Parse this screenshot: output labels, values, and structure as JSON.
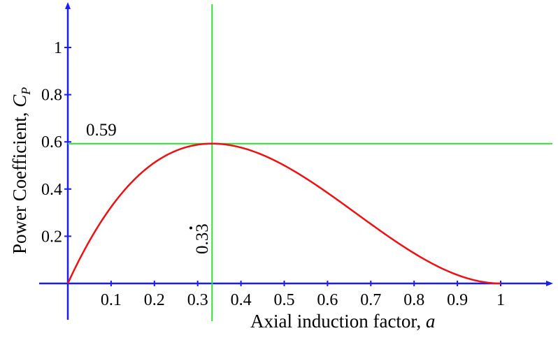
{
  "chart_data": {
    "type": "line",
    "xlabel": "Axial induction factor, ",
    "xlabel_var": "a",
    "ylabel": "Power Coefficient, ",
    "ylabel_var": "C",
    "ylabel_sub": "P",
    "x_ticks": [
      "0.1",
      "0.2",
      "0.3",
      "0.4",
      "0.5",
      "0.6",
      "0.7",
      "0.8",
      "0.9",
      "1"
    ],
    "x_tick_values": [
      0.1,
      0.2,
      0.3,
      0.4,
      0.5,
      0.6,
      0.7,
      0.8,
      0.9,
      1.0
    ],
    "y_ticks": [
      "0.2",
      "0.4",
      "0.6",
      "0.8",
      "1"
    ],
    "y_tick_values": [
      0.2,
      0.4,
      0.6,
      0.8,
      1.0
    ],
    "xlim": [
      0,
      1.1
    ],
    "ylim": [
      0,
      1.16
    ],
    "grid": false,
    "series": [
      {
        "color": "#ee1111",
        "formula": "4a(1-a)^2",
        "x": [
          0,
          0.05,
          0.1,
          0.15,
          0.2,
          0.25,
          0.3,
          0.3333,
          0.35,
          0.4,
          0.45,
          0.5,
          0.55,
          0.6,
          0.65,
          0.7,
          0.75,
          0.8,
          0.85,
          0.9,
          0.95,
          1.0
        ],
        "y": [
          0,
          0.1805,
          0.324,
          0.4335,
          0.512,
          0.5625,
          0.588,
          0.5926,
          0.5915,
          0.576,
          0.5445,
          0.5,
          0.4455,
          0.384,
          0.3185,
          0.252,
          0.1875,
          0.128,
          0.0765,
          0.036,
          0.0095,
          0
        ]
      }
    ],
    "annotations": {
      "max_cp_line": {
        "value": 0.5926,
        "label": "0.59",
        "color": "#33dd33"
      },
      "optimal_a_line": {
        "value": 0.3333,
        "label_main": "0.3",
        "label_dot": "3",
        "color": "#33dd33"
      }
    },
    "axis_color": "#1a1aff"
  }
}
